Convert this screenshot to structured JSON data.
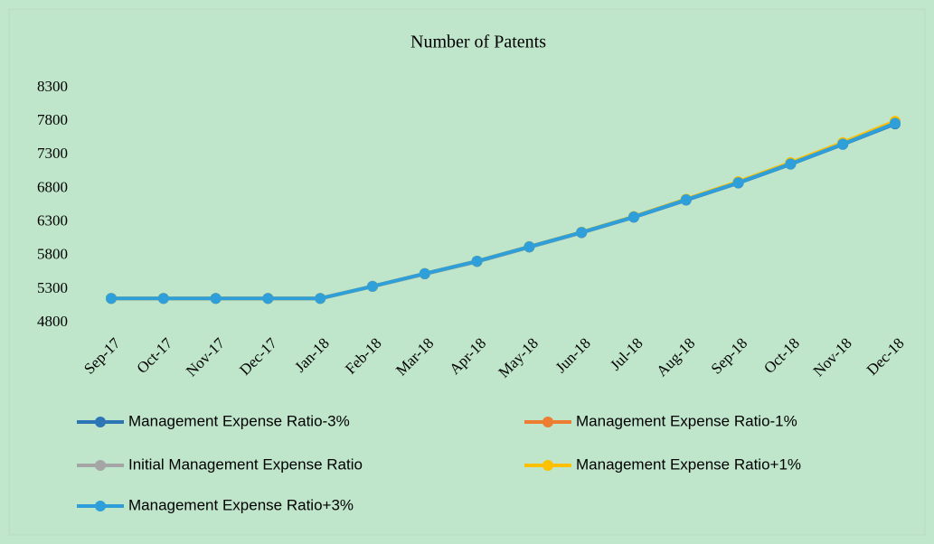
{
  "chart_data": {
    "type": "line",
    "title": "Number of Patents",
    "categories": [
      "Sep-17",
      "Oct-17",
      "Nov-17",
      "Dec-17",
      "Jan-18",
      "Feb-18",
      "Mar-18",
      "Apr-18",
      "May-18",
      "Jun-18",
      "Jul-18",
      "Aug-18",
      "Sep-18",
      "Oct-18",
      "Nov-18",
      "Dec-18"
    ],
    "series": [
      {
        "name": "Management Expense Ratio-3%",
        "color": "#2e75b6",
        "values": [
          5160,
          5160,
          5160,
          5160,
          5160,
          5340,
          5525,
          5710,
          5925,
          6140,
          6370,
          6625,
          6880,
          7160,
          7455,
          7760
        ]
      },
      {
        "name": "Management Expense Ratio-1%",
        "color": "#ed7d31",
        "values": [
          5160,
          5160,
          5160,
          5160,
          5160,
          5340,
          5530,
          5715,
          5930,
          6145,
          6378,
          6635,
          6892,
          7178,
          7475,
          7790
        ]
      },
      {
        "name": "Initial Management Expense Ratio",
        "color": "#a5a5a5",
        "values": [
          5160,
          5160,
          5160,
          5160,
          5160,
          5340,
          5530,
          5715,
          5930,
          6145,
          6378,
          6637,
          6895,
          7180,
          7478,
          7795
        ]
      },
      {
        "name": "Management Expense Ratio+1%",
        "color": "#ffc000",
        "values": [
          5160,
          5160,
          5160,
          5160,
          5160,
          5340,
          5530,
          5716,
          5932,
          6148,
          6380,
          6640,
          6900,
          7185,
          7482,
          7800
        ]
      },
      {
        "name": "Management Expense Ratio+3%",
        "color": "#2e9fd9",
        "values": [
          5160,
          5160,
          5160,
          5160,
          5160,
          5340,
          5530,
          5715,
          5930,
          6145,
          6375,
          6630,
          6885,
          7165,
          7460,
          7770
        ]
      }
    ],
    "ylim": [
      4800,
      8300
    ],
    "yticks": [
      4800,
      5300,
      5800,
      6300,
      6800,
      7300,
      7800,
      8300
    ],
    "grid": false,
    "legend": "bottom"
  }
}
